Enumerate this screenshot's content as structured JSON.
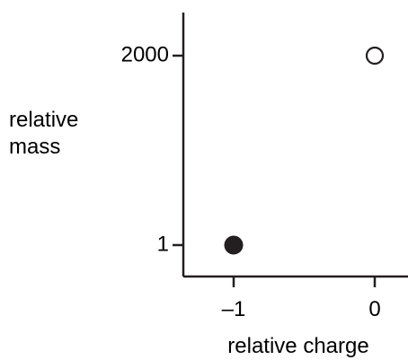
{
  "chart_data": {
    "type": "scatter",
    "xlabel": "relative charge",
    "ylabel_lines": [
      "relative",
      "mass"
    ],
    "x_ticks": [
      {
        "value": -1,
        "label": "–1"
      },
      {
        "value": 0,
        "label": "0"
      }
    ],
    "y_ticks": [
      {
        "value": 1,
        "label": "1"
      },
      {
        "value": 2000,
        "label": "2000"
      }
    ],
    "points": [
      {
        "x": -1,
        "y": 1,
        "style": "filled"
      },
      {
        "x": 0,
        "y": 2000,
        "style": "open"
      }
    ],
    "y_scale": "categorical (not to scale)",
    "grid": false,
    "legend": "none",
    "colors": {
      "axis": "#231f20",
      "marker": "#231f20",
      "background": "#ffffff"
    }
  }
}
